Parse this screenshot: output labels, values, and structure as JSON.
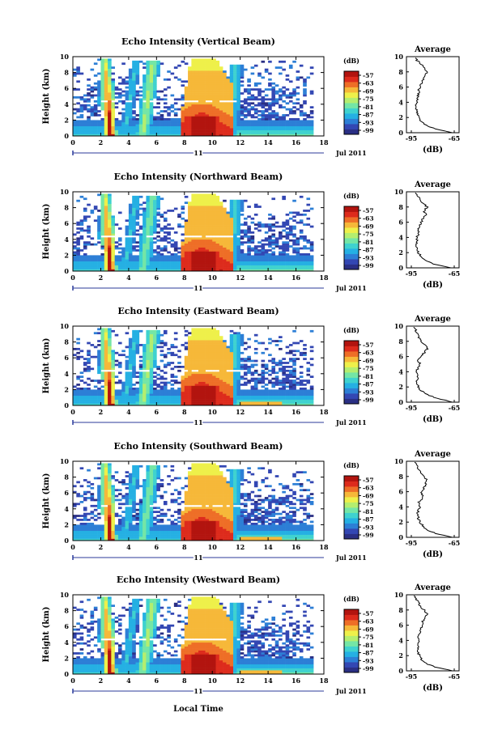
{
  "figure": {
    "xlabel": "Local Time",
    "date_label": "Jul 2011",
    "day_label": "11"
  },
  "colorbar": {
    "unit": "(dB)",
    "ticks": [
      "-57",
      "-63",
      "-69",
      "-75",
      "-81",
      "-87",
      "-93",
      "-99"
    ],
    "colors": [
      "#2a2f84",
      "#3347b3",
      "#2d7fd6",
      "#25b0e3",
      "#3fd2cf",
      "#74e6a6",
      "#b4ee6f",
      "#eef04a",
      "#f6b839",
      "#ee6e27",
      "#dd2b1c",
      "#b2140f"
    ]
  },
  "chart_data": [
    {
      "type": "heatmap",
      "title": "Echo Intensity (Vertical Beam)",
      "ylabel": "Height (km)",
      "xlabel": "",
      "x_ticks": [
        "0",
        "2",
        "4",
        "6",
        "8",
        "10",
        "12",
        "14",
        "16",
        "18"
      ],
      "y_ticks": [
        "0",
        "2",
        "4",
        "6",
        "8",
        "10"
      ],
      "xlim": [
        0,
        18
      ],
      "ylim": [
        0,
        10
      ],
      "zlim": [
        -99,
        -57
      ],
      "convection_cells": [
        {
          "time": 2.6,
          "peak_height_km": 9.5,
          "intensity_dB": -57
        },
        {
          "time": 5.5,
          "peak_height_km": 9.0,
          "intensity_dB": -75
        },
        {
          "time": 9.0,
          "peak_height_km": 9.5,
          "intensity_dB": -60
        }
      ],
      "bright_band_height_km": 4.3,
      "average_profile": {
        "title": "Average",
        "xlabel": "(dB)",
        "x_ticks": [
          "-95",
          "-65"
        ],
        "y_ticks": [
          "0",
          "2",
          "4",
          "6",
          "8",
          "10"
        ],
        "height_km": [
          0,
          0.5,
          1,
          1.5,
          2,
          2.5,
          3,
          3.5,
          4,
          4.5,
          5,
          5.5,
          6,
          6.5,
          7,
          7.5,
          8,
          8.5,
          9,
          9.5,
          10
        ],
        "dB": [
          -66,
          -78,
          -85,
          -88,
          -90,
          -91,
          -91,
          -92,
          -91,
          -91,
          -90,
          -90,
          -89,
          -88,
          -87,
          -85,
          -84,
          -86,
          -88,
          -91,
          -93
        ]
      }
    },
    {
      "type": "heatmap",
      "title": "Echo Intensity (Northward Beam)",
      "ylabel": "Height (km)",
      "xlabel": "",
      "x_ticks": [
        "0",
        "2",
        "4",
        "6",
        "8",
        "10",
        "12",
        "14",
        "16",
        "18"
      ],
      "y_ticks": [
        "0",
        "2",
        "4",
        "6",
        "8",
        "10"
      ],
      "xlim": [
        0,
        18
      ],
      "ylim": [
        0,
        10
      ],
      "zlim": [
        -99,
        -57
      ],
      "convection_cells": [
        {
          "time": 2.6,
          "peak_height_km": 9.5,
          "intensity_dB": -57
        },
        {
          "time": 5.5,
          "peak_height_km": 9.0,
          "intensity_dB": -72
        },
        {
          "time": 9.0,
          "peak_height_km": 9.5,
          "intensity_dB": -60
        }
      ],
      "bright_band_height_km": 4.3,
      "average_profile": {
        "title": "Average",
        "xlabel": "(dB)",
        "x_ticks": [
          "-95",
          "-65"
        ],
        "y_ticks": [
          "0",
          "2",
          "4",
          "6",
          "8",
          "10"
        ],
        "height_km": [
          0,
          0.5,
          1,
          1.5,
          2,
          2.5,
          3,
          3.5,
          4,
          4.5,
          5,
          5.5,
          6,
          6.5,
          7,
          7.5,
          8,
          8.5,
          9,
          9.5,
          10
        ],
        "dB": [
          -67,
          -79,
          -85,
          -88,
          -90,
          -91,
          -92,
          -91,
          -91,
          -90,
          -90,
          -89,
          -88,
          -87,
          -85,
          -86,
          -84,
          -87,
          -89,
          -91,
          -93
        ]
      }
    },
    {
      "type": "heatmap",
      "title": "Echo Intensity (Eastward Beam)",
      "ylabel": "Height (km)",
      "xlabel": "",
      "x_ticks": [
        "0",
        "2",
        "4",
        "6",
        "8",
        "10",
        "12",
        "14",
        "16",
        "18"
      ],
      "y_ticks": [
        "0",
        "2",
        "4",
        "6",
        "8",
        "10"
      ],
      "xlim": [
        0,
        18
      ],
      "ylim": [
        0,
        10
      ],
      "zlim": [
        -99,
        -57
      ],
      "convection_cells": [
        {
          "time": 2.6,
          "peak_height_km": 9.5,
          "intensity_dB": -57
        },
        {
          "time": 5.5,
          "peak_height_km": 9.0,
          "intensity_dB": -72
        },
        {
          "time": 9.0,
          "peak_height_km": 9.5,
          "intensity_dB": -60
        }
      ],
      "bright_band_height_km": 4.3,
      "average_profile": {
        "title": "Average",
        "xlabel": "(dB)",
        "x_ticks": [
          "-95",
          "-65"
        ],
        "y_ticks": [
          "0",
          "2",
          "4",
          "6",
          "8",
          "10"
        ],
        "height_km": [
          0,
          0.5,
          1,
          1.5,
          2,
          2.5,
          3,
          3.5,
          4,
          4.5,
          5,
          5.5,
          6,
          6.5,
          7,
          7.5,
          8,
          8.5,
          9,
          9.5,
          10
        ],
        "dB": [
          -66,
          -77,
          -84,
          -88,
          -90,
          -91,
          -91,
          -90,
          -92,
          -90,
          -89,
          -90,
          -88,
          -86,
          -84,
          -85,
          -88,
          -90,
          -91,
          -92,
          -94
        ]
      }
    },
    {
      "type": "heatmap",
      "title": "Echo Intensity (Southward Beam)",
      "ylabel": "Height (km)",
      "xlabel": "",
      "x_ticks": [
        "0",
        "2",
        "4",
        "6",
        "8",
        "10",
        "12",
        "14",
        "16",
        "18"
      ],
      "y_ticks": [
        "0",
        "2",
        "4",
        "6",
        "8",
        "10"
      ],
      "xlim": [
        0,
        18
      ],
      "ylim": [
        0,
        10
      ],
      "zlim": [
        -99,
        -57
      ],
      "convection_cells": [
        {
          "time": 2.6,
          "peak_height_km": 9.5,
          "intensity_dB": -57
        },
        {
          "time": 5.5,
          "peak_height_km": 9.0,
          "intensity_dB": -72
        },
        {
          "time": 9.0,
          "peak_height_km": 9.5,
          "intensity_dB": -60
        }
      ],
      "bright_band_height_km": 4.3,
      "average_profile": {
        "title": "Average",
        "xlabel": "(dB)",
        "x_ticks": [
          "-95",
          "-65"
        ],
        "y_ticks": [
          "0",
          "2",
          "4",
          "6",
          "8",
          "10"
        ],
        "height_km": [
          0,
          0.5,
          1,
          1.5,
          2,
          2.5,
          3,
          3.5,
          4,
          4.5,
          5,
          5.5,
          6,
          6.5,
          7,
          7.5,
          8,
          8.5,
          9,
          9.5,
          10
        ],
        "dB": [
          -66,
          -78,
          -84,
          -87,
          -89,
          -90,
          -91,
          -90,
          -89,
          -90,
          -88,
          -87,
          -88,
          -86,
          -85,
          -84,
          -86,
          -88,
          -90,
          -91,
          -93
        ]
      }
    },
    {
      "type": "heatmap",
      "title": "Echo Intensity (Westward Beam)",
      "ylabel": "Height (km)",
      "xlabel": "Local Time",
      "x_ticks": [
        "0",
        "2",
        "4",
        "6",
        "8",
        "10",
        "12",
        "14",
        "16",
        "18"
      ],
      "y_ticks": [
        "0",
        "2",
        "4",
        "6",
        "8",
        "10"
      ],
      "xlim": [
        0,
        18
      ],
      "ylim": [
        0,
        10
      ],
      "zlim": [
        -99,
        -57
      ],
      "convection_cells": [
        {
          "time": 2.6,
          "peak_height_km": 9.5,
          "intensity_dB": -57
        },
        {
          "time": 5.5,
          "peak_height_km": 9.0,
          "intensity_dB": -72
        },
        {
          "time": 9.0,
          "peak_height_km": 9.5,
          "intensity_dB": -60
        }
      ],
      "bright_band_height_km": 4.3,
      "average_profile": {
        "title": "Average",
        "xlabel": "(dB)",
        "x_ticks": [
          "-95",
          "-65"
        ],
        "y_ticks": [
          "0",
          "2",
          "4",
          "6",
          "8",
          "10"
        ],
        "height_km": [
          0,
          0.5,
          1,
          1.5,
          2,
          2.5,
          3,
          3.5,
          4,
          4.5,
          5,
          5.5,
          6,
          6.5,
          7,
          7.5,
          8,
          8.5,
          9,
          9.5,
          10
        ],
        "dB": [
          -66,
          -78,
          -85,
          -88,
          -89,
          -91,
          -90,
          -91,
          -90,
          -91,
          -89,
          -88,
          -88,
          -87,
          -86,
          -84,
          -86,
          -89,
          -90,
          -92,
          -93
        ]
      }
    }
  ]
}
